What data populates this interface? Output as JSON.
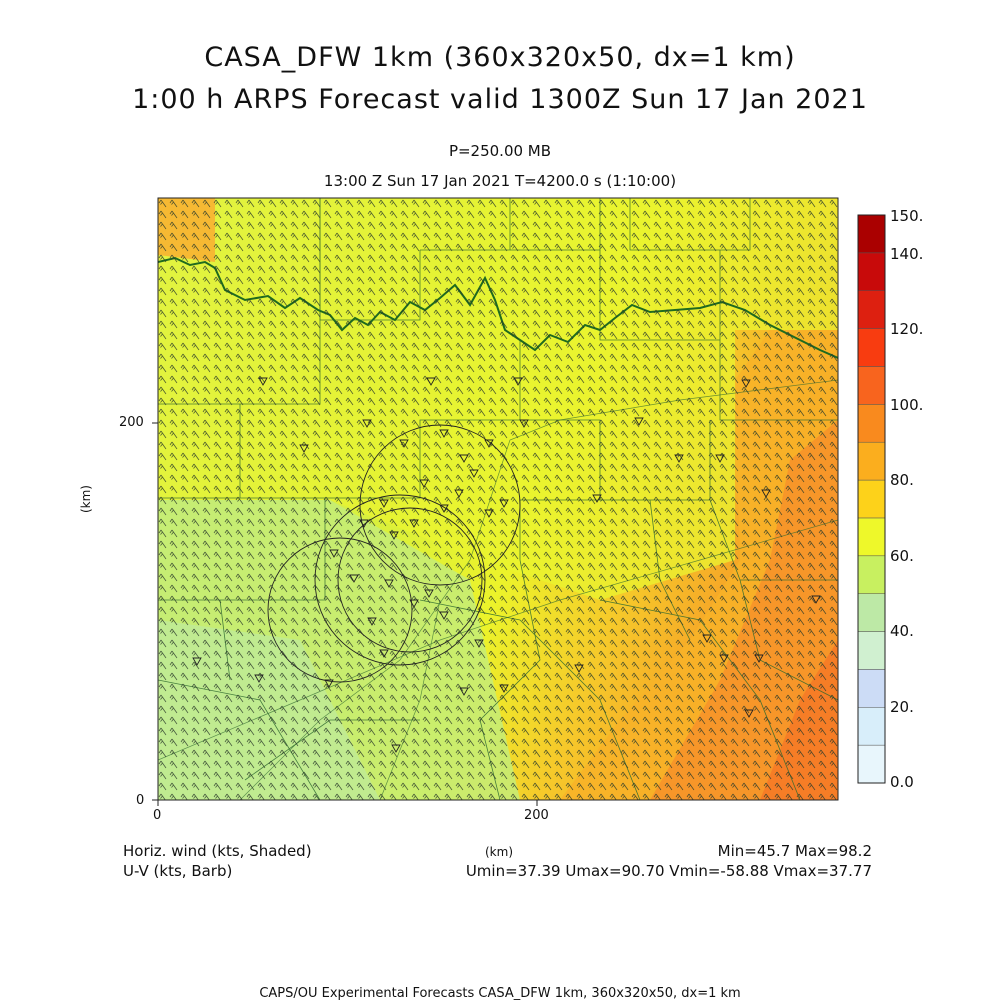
{
  "title_line1": "CASA_DFW 1km (360x320x50, dx=1 km)",
  "title_line2": "1:00 h ARPS Forecast valid 1300Z Sun 17 Jan 2021",
  "level_label": "P=250.00 MB",
  "time_label": "13:00 Z Sun 17 Jan 2021   T=4200.0 s (1:10:00)",
  "axes": {
    "y_ticks": [
      "0",
      "200"
    ],
    "x_ticks": [
      "0",
      "200"
    ],
    "y_label": "(km)",
    "x_label": "(km)"
  },
  "colorbar": {
    "labels": [
      "150.",
      "140.",
      "120.",
      "100.",
      "80.",
      "60.",
      "40.",
      "20.",
      "0.0"
    ],
    "colors": [
      "#e8f6fc",
      "#d8eefa",
      "#ccdcf6",
      "#d0f0d0",
      "#bde9a6",
      "#c8f060",
      "#eef82a",
      "#fdd21a",
      "#fbae1e",
      "#f98a1e",
      "#f8641e",
      "#f83c10",
      "#dd2010",
      "#c80a0a",
      "#aa0000"
    ]
  },
  "footer": {
    "field_label": "Horiz. wind (kts, Shaded)",
    "barb_label": "U-V (kts, Barb)",
    "minmax": "Min=45.7 Max=98.2",
    "uv_minmax": "Umin=37.39 Umax=90.70 Vmin=-58.88 Vmax=37.77",
    "credit": "CAPS/OU Experimental Forecasts  CASA_DFW 1km, 360x320x50, dx=1 km"
  }
}
